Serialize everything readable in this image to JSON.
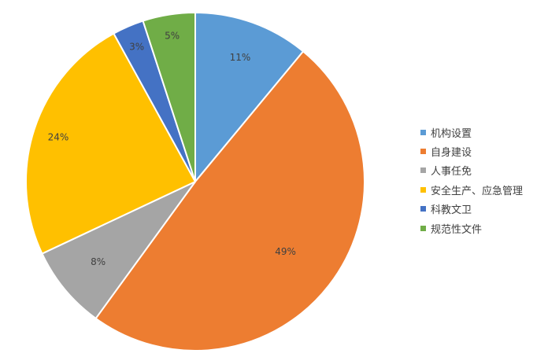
{
  "chart_data": {
    "type": "pie",
    "title": "",
    "categories": [
      "机构设置",
      "自身建设",
      "人事任免",
      "安全生产、应急管理",
      "科教文卫",
      "规范性文件"
    ],
    "values": [
      11,
      49,
      8,
      24,
      3,
      5
    ],
    "labels": [
      "11%",
      "49%",
      "8%",
      "24%",
      "3%",
      "5%"
    ],
    "colors": [
      "#5B9BD5",
      "#ED7D31",
      "#A5A5A5",
      "#FFC000",
      "#4472C4",
      "#70AD47"
    ],
    "start_angle": "12 o'clock",
    "direction": "clockwise",
    "legend_position": "right"
  }
}
